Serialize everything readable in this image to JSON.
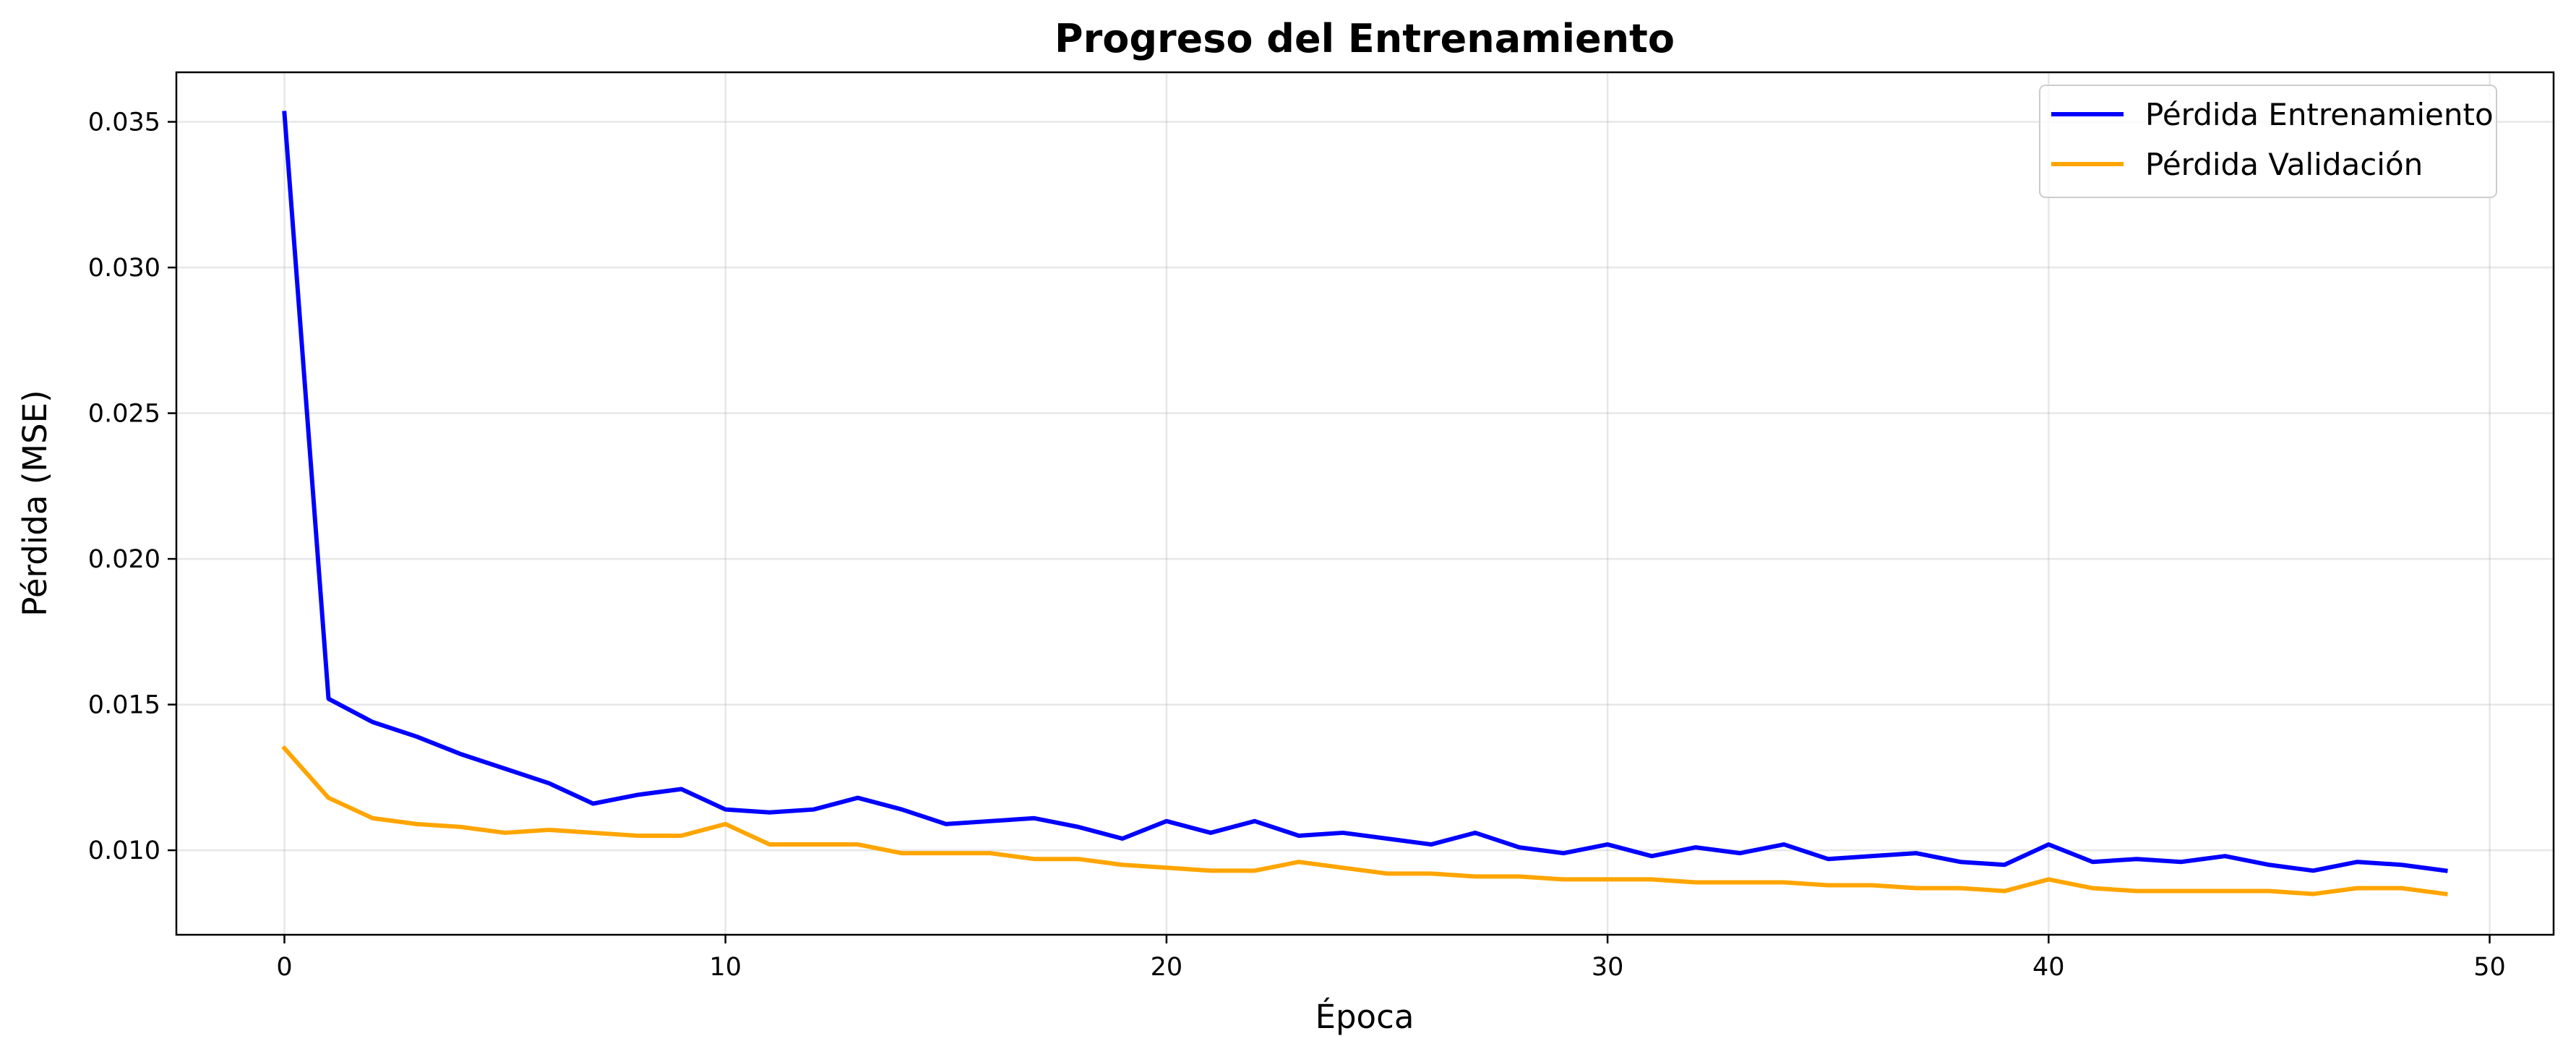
{
  "chart_data": {
    "type": "line",
    "title": "Progreso del Entrenamiento",
    "xlabel": "Época",
    "ylabel": "Pérdida (MSE)",
    "xlim": [
      -2.45,
      51.45
    ],
    "ylim": [
      0.0071,
      0.0367
    ],
    "x_ticks": [
      0,
      10,
      20,
      30,
      40,
      50
    ],
    "x_tick_labels": [
      "0",
      "10",
      "20",
      "30",
      "40",
      "50"
    ],
    "y_ticks": [
      0.01,
      0.015,
      0.02,
      0.025,
      0.03,
      0.035
    ],
    "y_tick_labels": [
      "0.010",
      "0.015",
      "0.020",
      "0.025",
      "0.030",
      "0.035"
    ],
    "grid": true,
    "legend_position": "top-right",
    "x": [
      0,
      1,
      2,
      3,
      4,
      5,
      6,
      7,
      8,
      9,
      10,
      11,
      12,
      13,
      14,
      15,
      16,
      17,
      18,
      19,
      20,
      21,
      22,
      23,
      24,
      25,
      26,
      27,
      28,
      29,
      30,
      31,
      32,
      33,
      34,
      35,
      36,
      37,
      38,
      39,
      40,
      41,
      42,
      43,
      44,
      45,
      46,
      47,
      48,
      49
    ],
    "series": [
      {
        "name": "Pérdida Entrenamiento",
        "color": "#0000ff",
        "values": [
          0.0353,
          0.0152,
          0.0144,
          0.0139,
          0.0133,
          0.0128,
          0.0123,
          0.0116,
          0.0119,
          0.0121,
          0.0114,
          0.0113,
          0.0114,
          0.0118,
          0.0114,
          0.0109,
          0.011,
          0.0111,
          0.0108,
          0.0104,
          0.011,
          0.0106,
          0.011,
          0.0105,
          0.0106,
          0.0104,
          0.0102,
          0.0106,
          0.0101,
          0.0099,
          0.0102,
          0.0098,
          0.0101,
          0.0099,
          0.0102,
          0.0097,
          0.0098,
          0.0099,
          0.0096,
          0.0095,
          0.0102,
          0.0096,
          0.0097,
          0.0096,
          0.0098,
          0.0095,
          0.0093,
          0.0096,
          0.0095,
          0.0093
        ]
      },
      {
        "name": "Pérdida Validación",
        "color": "#ffa500",
        "values": [
          0.0135,
          0.0118,
          0.0111,
          0.0109,
          0.0108,
          0.0106,
          0.0107,
          0.0106,
          0.0105,
          0.0105,
          0.0109,
          0.0102,
          0.0102,
          0.0102,
          0.0099,
          0.0099,
          0.0099,
          0.0097,
          0.0097,
          0.0095,
          0.0094,
          0.0093,
          0.0093,
          0.0096,
          0.0094,
          0.0092,
          0.0092,
          0.0091,
          0.0091,
          0.009,
          0.009,
          0.009,
          0.0089,
          0.0089,
          0.0089,
          0.0088,
          0.0088,
          0.0087,
          0.0087,
          0.0086,
          0.009,
          0.0087,
          0.0086,
          0.0086,
          0.0086,
          0.0086,
          0.0085,
          0.0087,
          0.0087,
          0.0085
        ]
      }
    ]
  }
}
